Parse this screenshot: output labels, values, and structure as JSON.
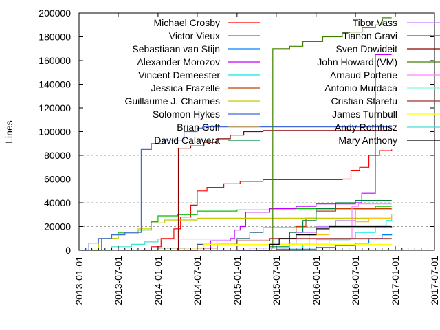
{
  "chart_data": {
    "type": "line",
    "style": "steps",
    "title": "",
    "xlabel": "",
    "ylabel": "Lines",
    "xlim": [
      "2013-01-01",
      "2017-07-01"
    ],
    "ylim": [
      0,
      200000
    ],
    "grid": true,
    "legend_placement": "top, two columns",
    "x_ticks": [
      "2013-01-01",
      "2013-07-01",
      "2014-01-01",
      "2014-07-01",
      "2015-01-01",
      "2015-07-01",
      "2016-01-01",
      "2016-07-01",
      "2017-01-01",
      "2017-07-01"
    ],
    "y_ticks": [
      "0",
      "20000",
      "40000",
      "60000",
      "80000",
      "100000",
      "120000",
      "140000",
      "160000",
      "180000",
      "200000"
    ],
    "series": [
      {
        "name": "Michael Crosby",
        "color": "#ff0000",
        "points": [
          [
            "2013-10-15",
            0
          ],
          [
            "2013-12-01",
            3000
          ],
          [
            "2014-01-15",
            10000
          ],
          [
            "2014-03-15",
            18000
          ],
          [
            "2014-04-15",
            28000
          ],
          [
            "2014-06-01",
            38000
          ],
          [
            "2014-07-01",
            50000
          ],
          [
            "2014-08-15",
            53000
          ],
          [
            "2014-11-01",
            56000
          ],
          [
            "2015-01-15",
            58000
          ],
          [
            "2015-05-01",
            59500
          ],
          [
            "2016-05-01",
            60000
          ],
          [
            "2016-06-10",
            67000
          ],
          [
            "2016-07-20",
            70000
          ],
          [
            "2016-09-01",
            80000
          ],
          [
            "2016-10-20",
            84000
          ],
          [
            "2016-12-15",
            85000
          ]
        ]
      },
      {
        "name": "Victor Vieux",
        "color": "#00c000",
        "points": [
          [
            "2013-03-01",
            0
          ],
          [
            "2013-04-15",
            10000
          ],
          [
            "2013-07-01",
            15000
          ],
          [
            "2013-10-01",
            17000
          ],
          [
            "2013-12-01",
            24000
          ],
          [
            "2014-01-01",
            29000
          ],
          [
            "2014-04-01",
            30000
          ],
          [
            "2014-07-01",
            33000
          ],
          [
            "2015-01-01",
            34000
          ],
          [
            "2015-06-01",
            35000
          ],
          [
            "2016-10-01",
            37000
          ],
          [
            "2016-12-15",
            37000
          ]
        ]
      },
      {
        "name": "Sebastiaan van Stijn",
        "color": "#0080ff",
        "points": [
          [
            "2015-01-01",
            0
          ],
          [
            "2015-07-01",
            1000
          ],
          [
            "2016-01-01",
            2500
          ],
          [
            "2016-04-01",
            4000
          ],
          [
            "2016-07-01",
            6000
          ],
          [
            "2016-09-01",
            10000
          ],
          [
            "2016-11-01",
            13000
          ],
          [
            "2016-12-15",
            14000
          ]
        ]
      },
      {
        "name": "Alexander Morozov",
        "color": "#c000ff",
        "points": [
          [
            "2014-04-01",
            0
          ],
          [
            "2014-07-01",
            2000
          ],
          [
            "2014-09-01",
            8000
          ],
          [
            "2014-12-01",
            10000
          ],
          [
            "2014-12-20",
            17000
          ],
          [
            "2015-01-15",
            20000
          ],
          [
            "2015-02-10",
            32000
          ],
          [
            "2015-06-01",
            35000
          ],
          [
            "2015-10-01",
            37000
          ],
          [
            "2016-01-01",
            39000
          ],
          [
            "2016-07-01",
            40000
          ],
          [
            "2016-07-30",
            48000
          ],
          [
            "2016-10-01",
            165000
          ],
          [
            "2016-12-15",
            165000
          ]
        ]
      },
      {
        "name": "Vincent Demeester",
        "color": "#00eeee",
        "points": [
          [
            "2015-08-01",
            0
          ],
          [
            "2015-11-01",
            5000
          ],
          [
            "2016-03-01",
            10000
          ],
          [
            "2016-07-01",
            15000
          ],
          [
            "2016-10-01",
            20000
          ],
          [
            "2016-11-20",
            25000
          ],
          [
            "2016-12-15",
            30000
          ]
        ]
      },
      {
        "name": "Jessica Frazelle",
        "color": "#c04000",
        "points": [
          [
            "2015-06-01",
            0
          ],
          [
            "2015-09-01",
            10000
          ],
          [
            "2015-10-01",
            20000
          ],
          [
            "2015-11-15",
            27000
          ],
          [
            "2016-01-01",
            33000
          ],
          [
            "2016-04-01",
            35000
          ],
          [
            "2016-12-15",
            35000
          ]
        ]
      },
      {
        "name": "Guillaume J. Charmes",
        "color": "#c8c800",
        "points": [
          [
            "2013-02-15",
            0
          ],
          [
            "2013-04-01",
            10000
          ],
          [
            "2013-07-01",
            14000
          ],
          [
            "2013-10-01",
            18000
          ],
          [
            "2013-12-01",
            23000
          ],
          [
            "2014-02-01",
            25500
          ],
          [
            "2014-07-01",
            27000
          ],
          [
            "2016-12-15",
            27000
          ]
        ]
      },
      {
        "name": "Solomon Hykes",
        "color": "#4169e1",
        "points": [
          [
            "2013-01-10",
            0
          ],
          [
            "2013-02-15",
            6000
          ],
          [
            "2013-04-01",
            10000
          ],
          [
            "2013-06-01",
            13000
          ],
          [
            "2013-08-01",
            15000
          ],
          [
            "2013-10-15",
            85000
          ],
          [
            "2013-12-01",
            90000
          ],
          [
            "2014-02-01",
            93000
          ],
          [
            "2014-05-01",
            100000
          ],
          [
            "2014-07-01",
            103000
          ],
          [
            "2014-08-01",
            104000
          ],
          [
            "2016-12-15",
            104000
          ]
        ]
      },
      {
        "name": "Brian Goff",
        "color": "#ffc020",
        "points": [
          [
            "2015-06-01",
            0
          ],
          [
            "2015-09-01",
            5000
          ],
          [
            "2015-12-01",
            13000
          ],
          [
            "2016-03-01",
            20000
          ],
          [
            "2016-07-01",
            24000
          ],
          [
            "2016-09-01",
            27000
          ],
          [
            "2016-12-15",
            30000
          ]
        ]
      },
      {
        "name": "David Calavera",
        "color": "#008040",
        "points": [
          [
            "2015-01-01",
            0
          ],
          [
            "2015-06-01",
            3000
          ],
          [
            "2015-09-01",
            15000
          ],
          [
            "2015-11-01",
            25000
          ],
          [
            "2016-01-01",
            35000
          ],
          [
            "2016-04-01",
            40000
          ],
          [
            "2016-07-01",
            42000
          ],
          [
            "2016-12-15",
            42000
          ]
        ]
      },
      {
        "name": "Tibor Vass",
        "color": "#c080ff",
        "points": [
          [
            "2014-09-01",
            0
          ],
          [
            "2015-03-01",
            2000
          ],
          [
            "2015-07-01",
            5000
          ],
          [
            "2015-10-01",
            15000
          ],
          [
            "2016-01-01",
            20000
          ],
          [
            "2016-04-01",
            25000
          ],
          [
            "2016-07-01",
            34000
          ],
          [
            "2016-12-15",
            35000
          ]
        ]
      },
      {
        "name": "Tianon Gravi",
        "color": "#306080",
        "points": [
          [
            "2013-07-01",
            0
          ],
          [
            "2014-01-01",
            2000
          ],
          [
            "2014-07-01",
            5000
          ],
          [
            "2015-01-01",
            10000
          ],
          [
            "2015-03-01",
            15000
          ],
          [
            "2015-05-01",
            19000
          ],
          [
            "2016-12-15",
            20000
          ]
        ]
      },
      {
        "name": "Sven Dowideit",
        "color": "#8b0000",
        "points": [
          [
            "2014-04-01",
            0
          ],
          [
            "2014-04-05",
            86000
          ],
          [
            "2014-06-01",
            88000
          ],
          [
            "2014-08-01",
            91000
          ],
          [
            "2014-10-01",
            94000
          ],
          [
            "2014-12-01",
            97000
          ],
          [
            "2015-02-01",
            100000
          ],
          [
            "2015-05-01",
            101000
          ],
          [
            "2016-12-15",
            101000
          ]
        ]
      },
      {
        "name": "John Howard (VM)",
        "color": "#408000",
        "points": [
          [
            "2015-03-01",
            0
          ],
          [
            "2015-06-10",
            2000
          ],
          [
            "2015-06-15",
            170000
          ],
          [
            "2015-09-01",
            172000
          ],
          [
            "2015-11-01",
            176000
          ],
          [
            "2016-02-01",
            180000
          ],
          [
            "2016-05-01",
            184000
          ],
          [
            "2016-08-01",
            188000
          ],
          [
            "2016-10-01",
            190000
          ],
          [
            "2016-11-01",
            196000
          ],
          [
            "2016-12-15",
            196000
          ]
        ]
      },
      {
        "name": "Arnaud Porterie",
        "color": "#ff80ff",
        "points": [
          [
            "2015-01-01",
            0
          ],
          [
            "2015-09-01",
            5000
          ],
          [
            "2016-01-01",
            9000
          ],
          [
            "2016-06-10",
            10000
          ],
          [
            "2016-06-15",
            37000
          ],
          [
            "2016-07-15",
            39000
          ],
          [
            "2016-12-15",
            39000
          ]
        ]
      },
      {
        "name": "Antonio Murdaca",
        "color": "#7fffd4",
        "points": [
          [
            "2015-09-01",
            0
          ],
          [
            "2015-12-01",
            5000
          ],
          [
            "2016-03-01",
            8000
          ],
          [
            "2016-06-01",
            12000
          ],
          [
            "2016-12-15",
            12500
          ]
        ]
      },
      {
        "name": "Cristian Staretu",
        "color": "#a52a2a",
        "points": [
          [
            "2014-04-01",
            0
          ],
          [
            "2014-07-01",
            2000
          ],
          [
            "2014-10-01",
            5000
          ],
          [
            "2015-01-01",
            8000
          ],
          [
            "2015-06-01",
            10000
          ],
          [
            "2016-12-15",
            10000
          ]
        ]
      },
      {
        "name": "James Turnbull",
        "color": "#ffff00",
        "points": [
          [
            "2014-01-01",
            0
          ],
          [
            "2014-05-01",
            2000
          ],
          [
            "2014-08-01",
            5000
          ],
          [
            "2016-12-15",
            5000
          ]
        ]
      },
      {
        "name": "Andy Rothfusz",
        "color": "#40e0d0",
        "points": [
          [
            "2013-05-01",
            0
          ],
          [
            "2013-06-01",
            3000
          ],
          [
            "2013-09-01",
            5000
          ],
          [
            "2013-11-01",
            7000
          ],
          [
            "2014-01-01",
            9500
          ],
          [
            "2016-12-15",
            9500
          ]
        ]
      },
      {
        "name": "Mary Anthony",
        "color": "#000000",
        "points": [
          [
            "2015-04-01",
            0
          ],
          [
            "2015-06-01",
            5000
          ],
          [
            "2015-07-15",
            10000
          ],
          [
            "2015-10-01",
            13000
          ],
          [
            "2016-01-01",
            18000
          ],
          [
            "2016-03-01",
            20000
          ],
          [
            "2016-12-15",
            20000
          ]
        ]
      }
    ]
  }
}
